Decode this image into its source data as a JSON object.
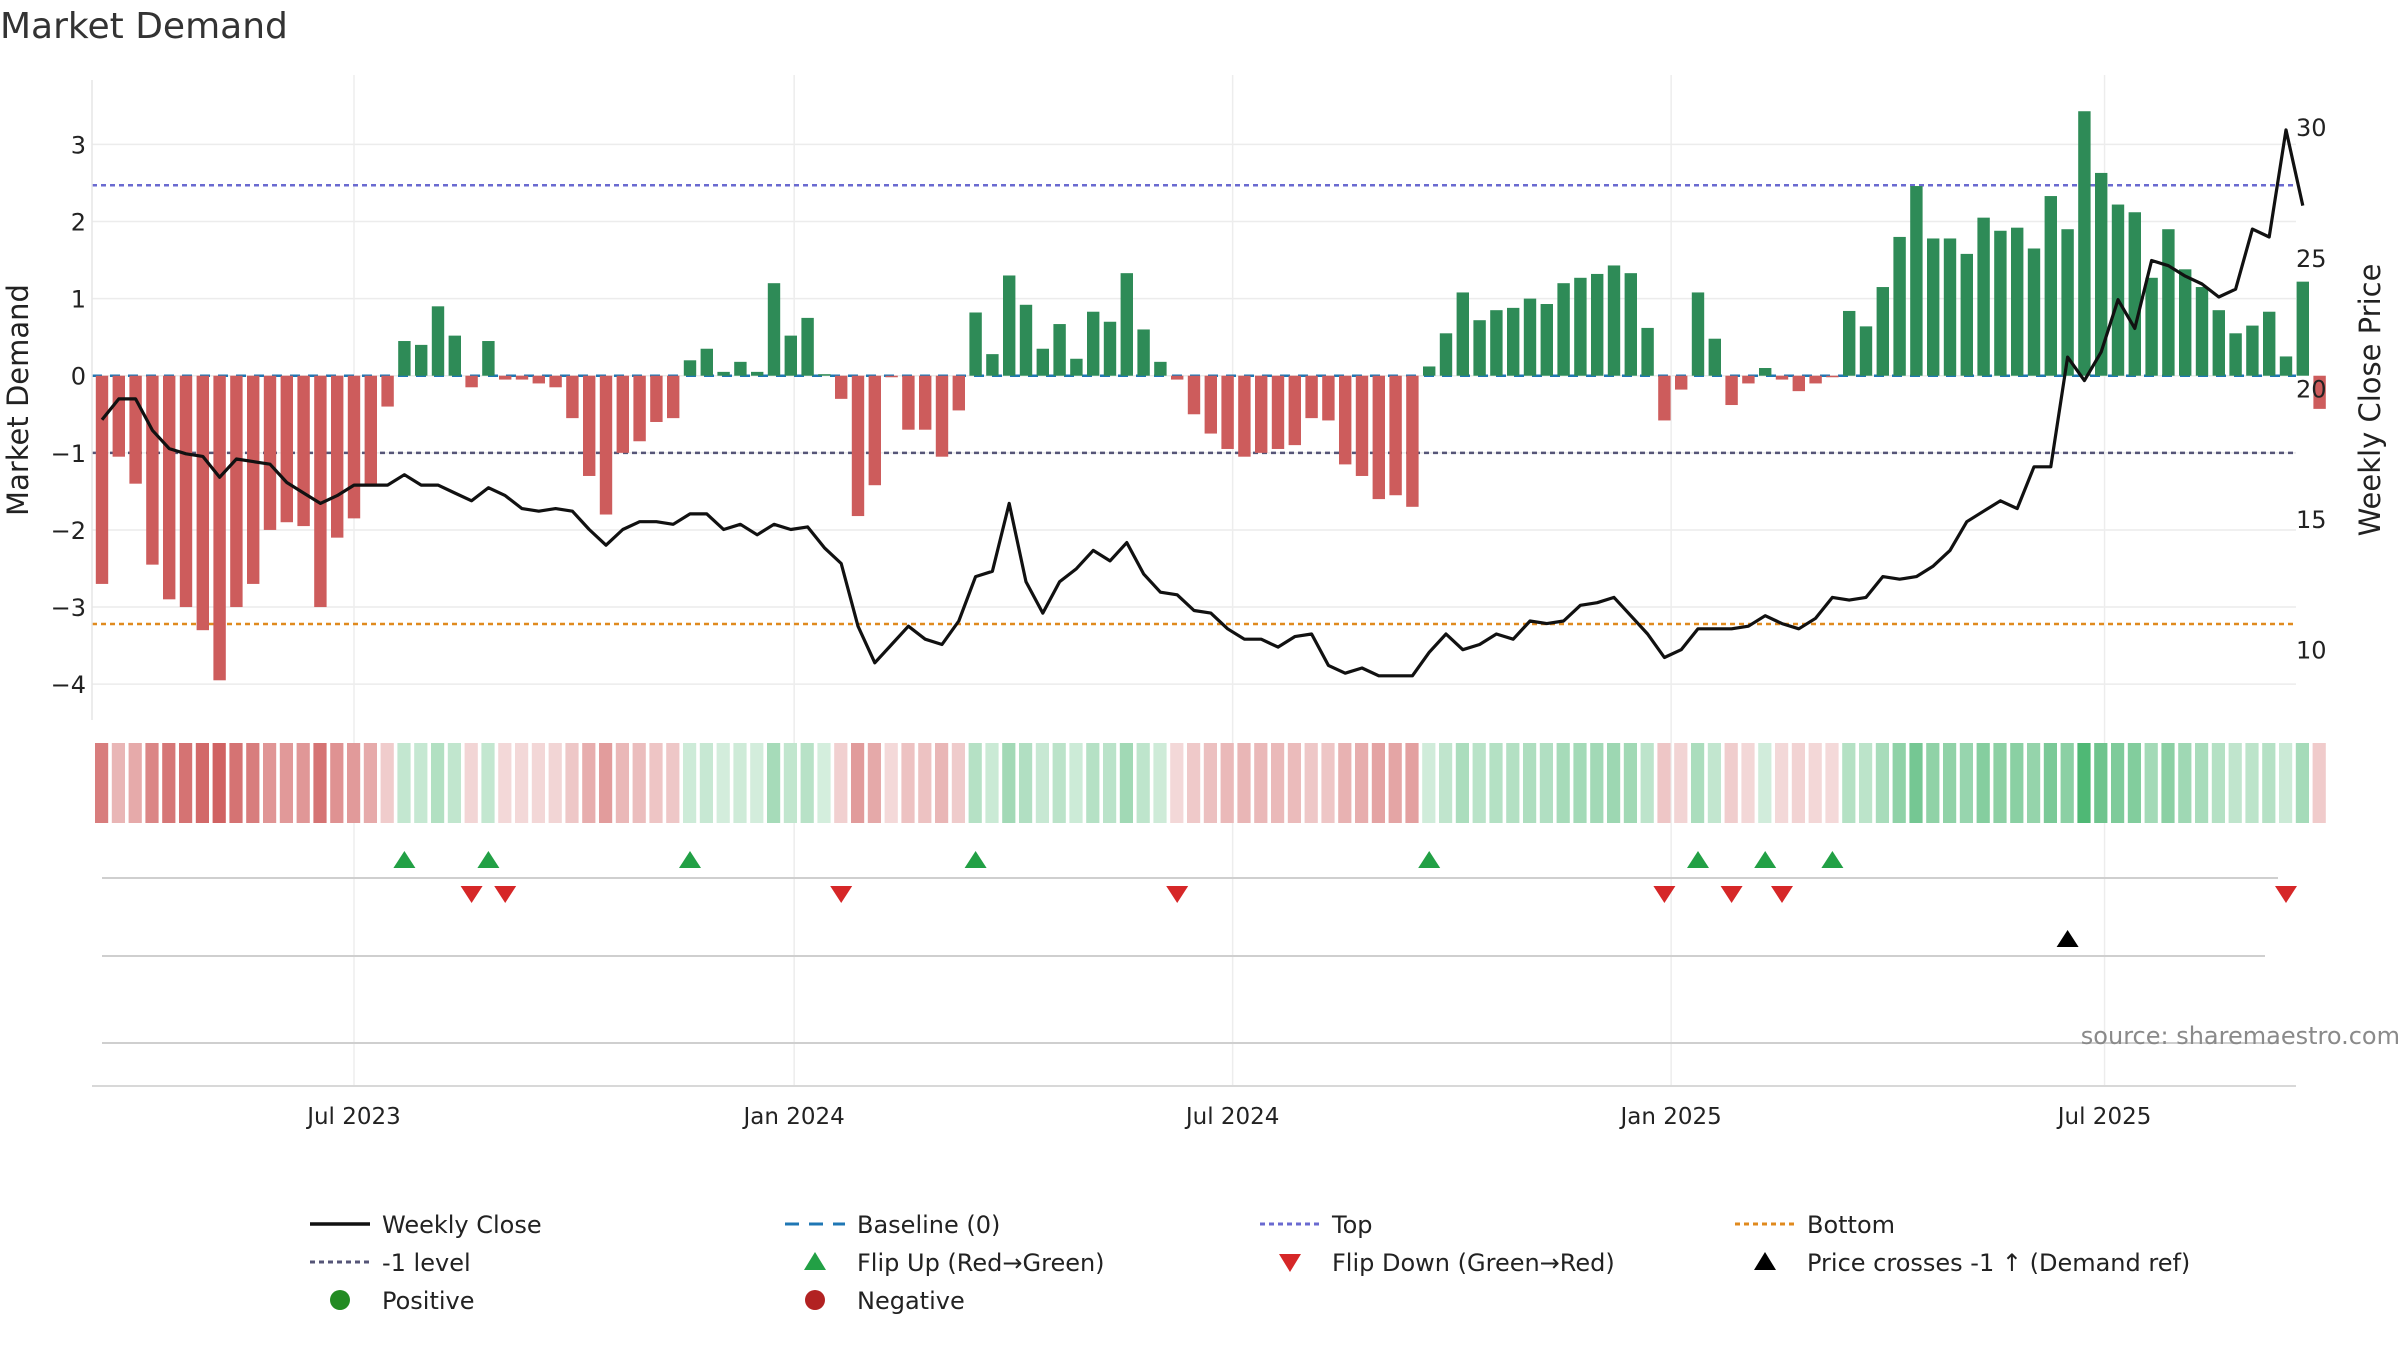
{
  "title": "Market Demand",
  "source_note": "source: sharemaestro.com",
  "colors": {
    "positive_bar": "#2e8b57",
    "negative_bar": "#cd5c5c",
    "price_line": "#111111",
    "baseline": "#1f77b4",
    "top_line": "#6a6ad0",
    "minus1_line": "#555577",
    "bottom_line": "#e08a1e",
    "flip_up": "#22a045",
    "flip_down": "#d62728",
    "cross": "#000000",
    "legend_positive": "#228b22",
    "legend_negative": "#b22222"
  },
  "chart_data": {
    "type": "bar",
    "title": "Market Demand",
    "ylabel": "Market Demand",
    "y2label": "Weekly Close Price",
    "ylim": [
      -4.4,
      3.9
    ],
    "y2lim": [
      7.5,
      32
    ],
    "yticks": [
      -4,
      -3,
      -2,
      -1,
      0,
      1,
      2,
      3
    ],
    "ytick_labels": [
      "−4",
      "−3",
      "−2",
      "−1",
      "0",
      "1",
      "2",
      "3"
    ],
    "y2ticks": [
      10,
      15,
      20,
      25,
      30
    ],
    "y2tick_labels": [
      "10",
      "15",
      "20",
      "25",
      "30"
    ],
    "week_range": [
      0,
      131
    ],
    "x_ticks": [
      {
        "label": "Jul 2023",
        "week": 15
      },
      {
        "label": "Jan 2024",
        "week": 41.2
      },
      {
        "label": "Jul 2024",
        "week": 67.3
      },
      {
        "label": "Jan 2025",
        "week": 93.4
      },
      {
        "label": "Jul 2025",
        "week": 119.2
      }
    ],
    "reference_lines": {
      "top": 2.47,
      "minus1": -1.0,
      "bottom": -3.22,
      "baseline": 0
    },
    "demand": [
      -2.7,
      -1.05,
      -1.4,
      -2.45,
      -2.9,
      -3.0,
      -3.3,
      -3.95,
      -3.0,
      -2.7,
      -2.0,
      -1.9,
      -1.95,
      -3.0,
      -2.1,
      -1.85,
      -1.4,
      -0.4,
      0.45,
      0.4,
      0.9,
      0.52,
      -0.15,
      0.45,
      -0.05,
      -0.05,
      -0.1,
      -0.15,
      -0.55,
      -1.3,
      -1.8,
      -1.0,
      -0.85,
      -0.6,
      -0.55,
      0.2,
      0.35,
      0.05,
      0.18,
      0.05,
      1.2,
      0.52,
      0.75,
      0.02,
      -0.3,
      -1.82,
      -1.42,
      -0.02,
      -0.7,
      -0.7,
      -1.05,
      -0.45,
      0.82,
      0.28,
      1.3,
      0.92,
      0.35,
      0.67,
      0.22,
      0.83,
      0.7,
      1.33,
      0.6,
      0.18,
      -0.05,
      -0.5,
      -0.75,
      -0.95,
      -1.05,
      -1.0,
      -0.95,
      -0.9,
      -0.55,
      -0.58,
      -1.15,
      -1.3,
      -1.6,
      -1.55,
      -1.7,
      0.12,
      0.55,
      1.08,
      0.72,
      0.85,
      0.88,
      1.0,
      0.93,
      1.2,
      1.27,
      1.32,
      1.43,
      1.33,
      0.62,
      -0.58,
      -0.18,
      1.08,
      0.48,
      -0.38,
      -0.1,
      0.1,
      -0.05,
      -0.2,
      -0.1,
      -0.02,
      0.84,
      0.64,
      1.15,
      1.8,
      2.46,
      1.78,
      1.78,
      1.58,
      2.05,
      1.88,
      1.92,
      1.65,
      2.33,
      1.9,
      3.43,
      2.63,
      2.22,
      2.12,
      1.27,
      1.9,
      1.38,
      1.15,
      0.85,
      0.55,
      0.65,
      0.83,
      0.25,
      1.22,
      -0.43
    ],
    "close": [
      18.8,
      19.6,
      19.6,
      18.4,
      17.7,
      17.5,
      17.4,
      16.6,
      17.3,
      17.2,
      17.1,
      16.4,
      16.0,
      15.6,
      15.9,
      16.3,
      16.3,
      16.3,
      16.7,
      16.3,
      16.3,
      16.0,
      15.7,
      16.2,
      15.9,
      15.4,
      15.3,
      15.4,
      15.3,
      14.6,
      14.0,
      14.6,
      14.9,
      14.9,
      14.8,
      15.2,
      15.2,
      14.6,
      14.8,
      14.4,
      14.8,
      14.6,
      14.7,
      13.9,
      13.3,
      10.9,
      9.5,
      10.2,
      10.9,
      10.4,
      10.2,
      11.1,
      12.8,
      13.0,
      15.6,
      12.6,
      11.4,
      12.6,
      13.1,
      13.8,
      13.4,
      14.1,
      12.9,
      12.2,
      12.1,
      11.5,
      11.4,
      10.8,
      10.4,
      10.4,
      10.1,
      10.5,
      10.6,
      9.4,
      9.1,
      9.3,
      9.0,
      9.0,
      9.0,
      9.9,
      10.6,
      10.0,
      10.2,
      10.6,
      10.4,
      11.1,
      11.0,
      11.1,
      11.7,
      11.8,
      12.0,
      11.3,
      10.6,
      9.7,
      10.0,
      10.8,
      10.8,
      10.8,
      10.9,
      11.3,
      11.0,
      10.8,
      11.2,
      12.0,
      11.9,
      12.0,
      12.8,
      12.7,
      12.8,
      13.2,
      13.8,
      14.9,
      15.3,
      15.7,
      15.4,
      17.0,
      17.0,
      21.2,
      20.3,
      21.4,
      23.4,
      22.3,
      24.9,
      24.7,
      24.3,
      24.0,
      23.5,
      23.8,
      26.1,
      25.8,
      29.9,
      27.0
    ],
    "flip_up_weeks": [
      18,
      23,
      35,
      52,
      79,
      95,
      99,
      103
    ],
    "flip_down_weeks": [
      22,
      24,
      44,
      64,
      93,
      97,
      100,
      130
    ],
    "cross_weeks": [
      117
    ],
    "legend": [
      [
        "Weekly Close",
        "Baseline (0)",
        "Top",
        "Bottom"
      ],
      [
        "-1 level",
        "Flip Up (Red→Green)",
        "Flip Down (Green→Red)",
        "Price crosses -1 ↑ (Demand ref)"
      ],
      [
        "Positive",
        "Negative"
      ]
    ]
  }
}
